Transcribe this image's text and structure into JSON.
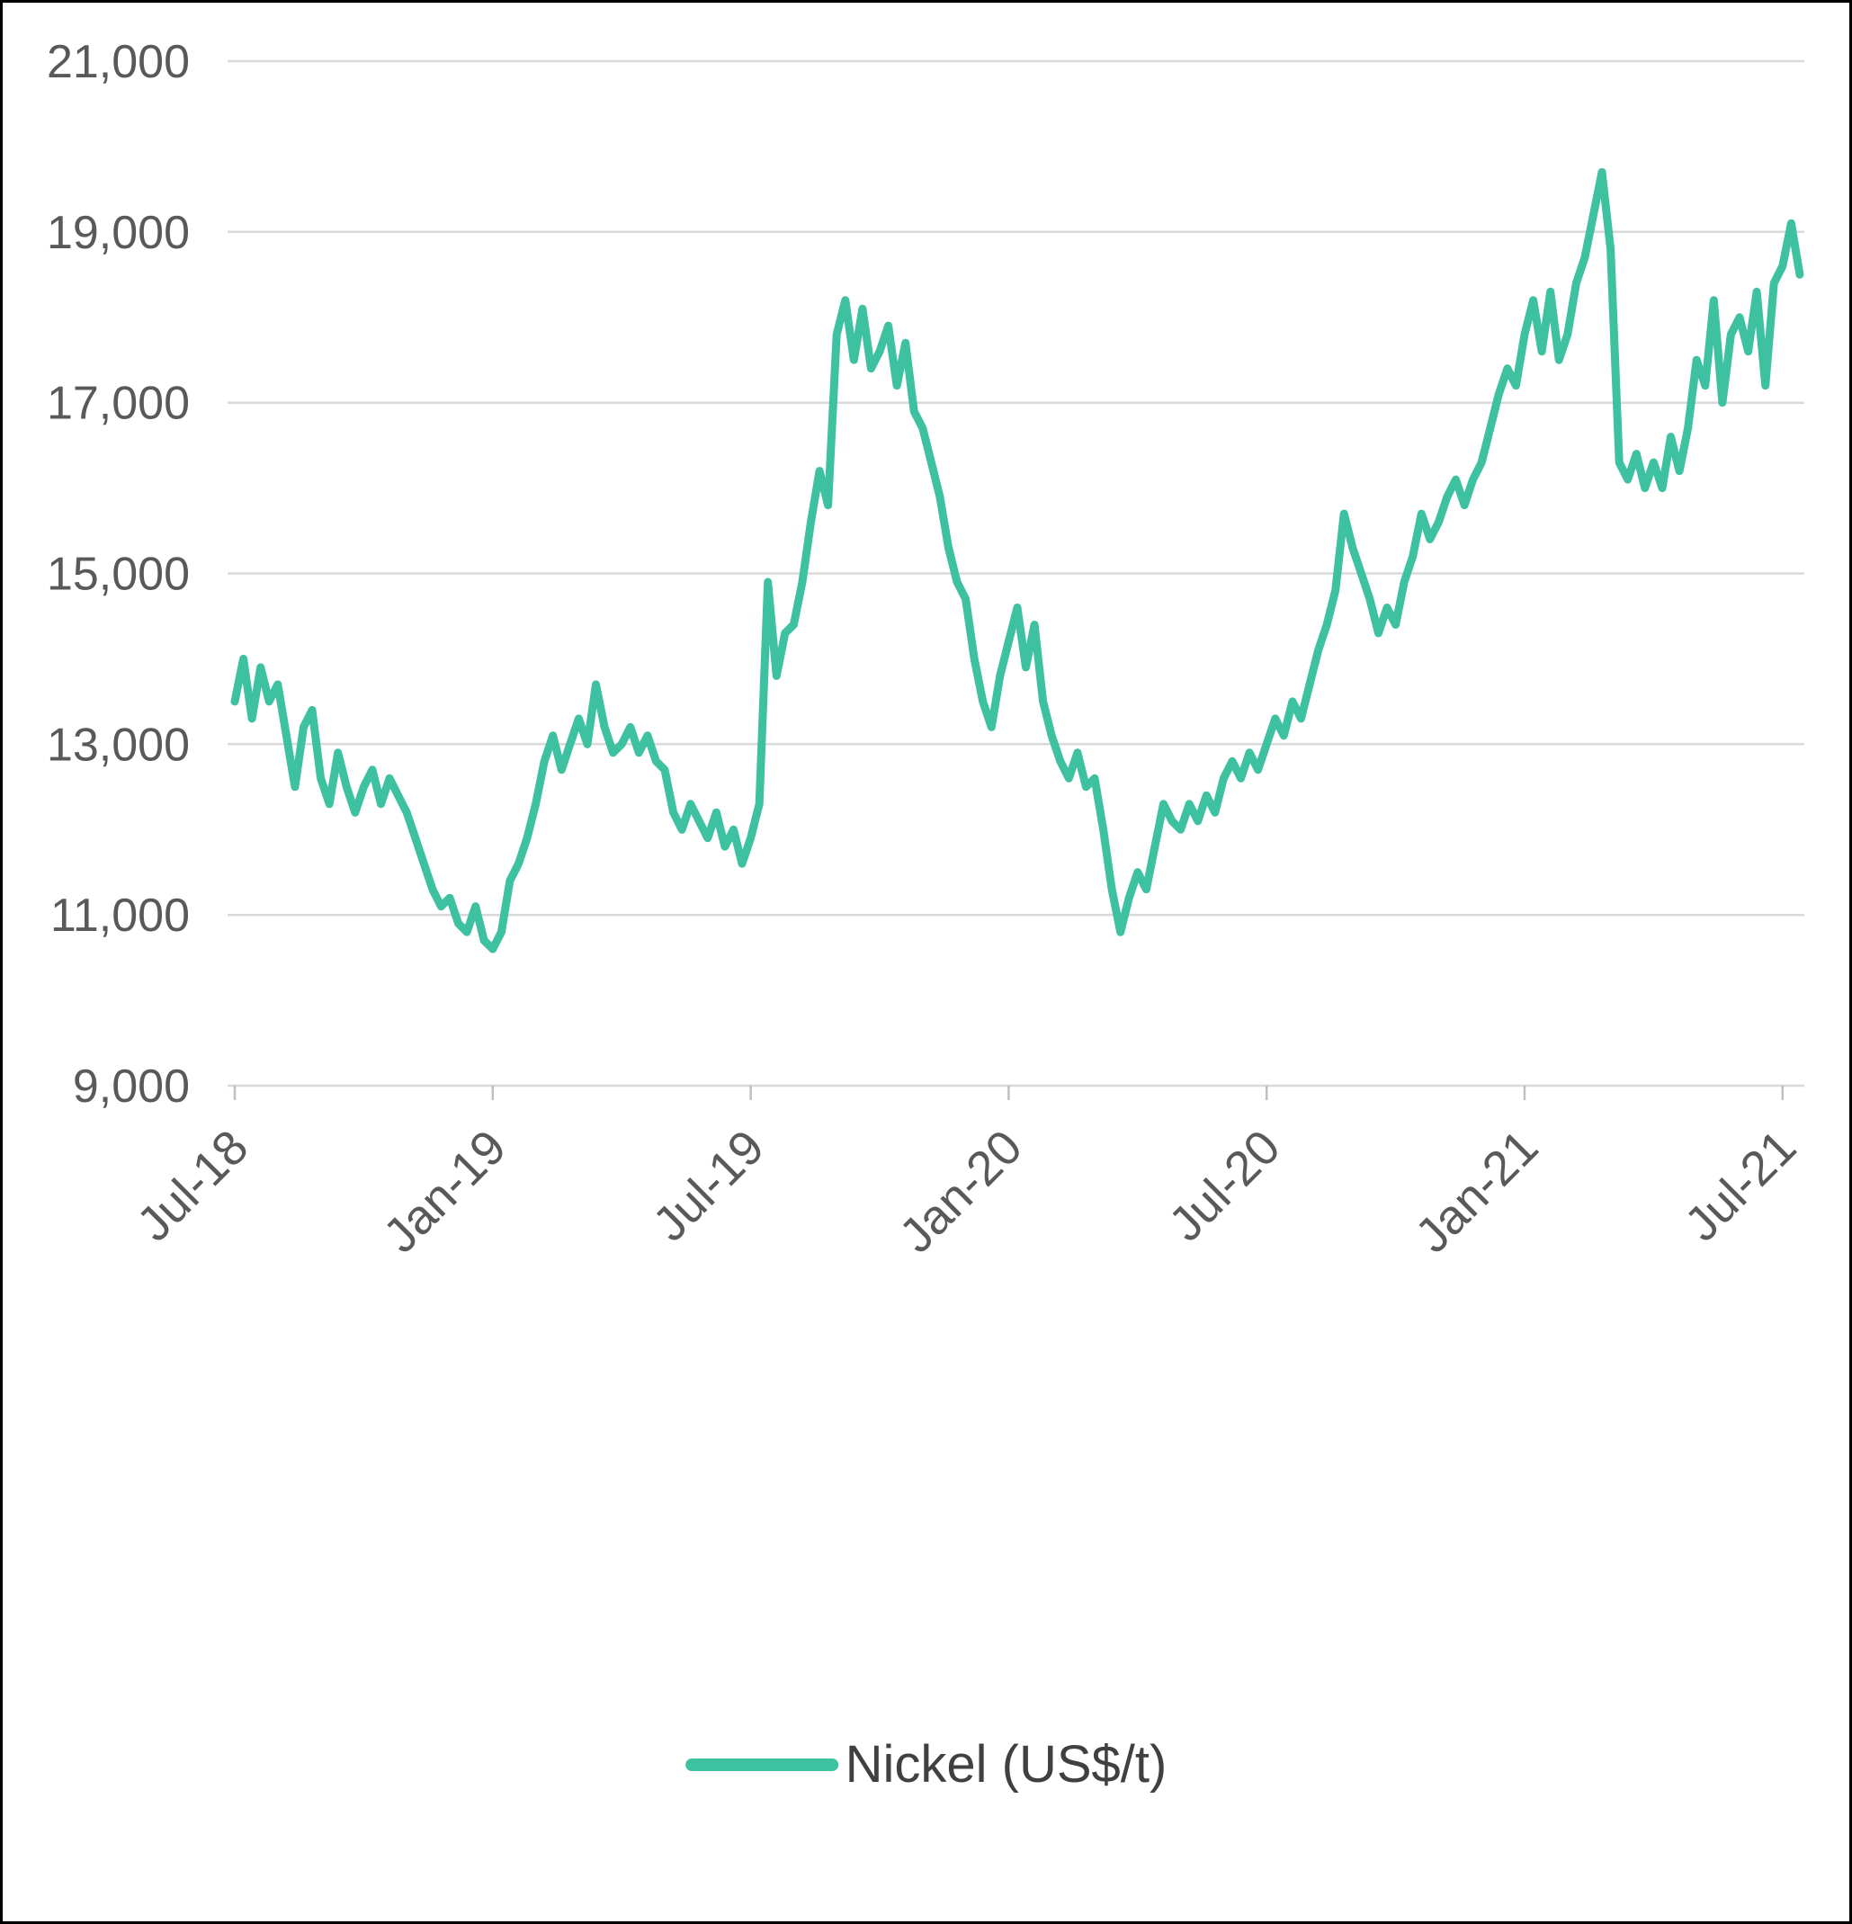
{
  "page": {
    "background": "#FFFFFF",
    "border_color": "#000000"
  },
  "chart_data": {
    "type": "line",
    "title": "",
    "grid": "horizontal",
    "legend": {
      "label": "Nickel (US$/t)",
      "position": "bottom-center"
    },
    "colors": {
      "line": "#3EC1A0",
      "gridline": "#D9D9D9",
      "tick": "#BFBFBF",
      "label": "#595959",
      "legend_text": "#404040"
    },
    "x_axis": {
      "tick_labels": [
        "Jul-18",
        "Jan-19",
        "Jul-19",
        "Jan-20",
        "Jul-20",
        "Jan-21",
        "Jul-21"
      ],
      "tick_months": [
        0,
        6,
        12,
        18,
        24,
        30,
        36
      ],
      "rotation_deg": -45,
      "lim_months": [
        0,
        36.5
      ]
    },
    "y_axis": {
      "ticks": [
        9000,
        11000,
        13000,
        15000,
        17000,
        19000,
        21000
      ],
      "tick_labels": [
        "9,000",
        "11,000",
        "13,000",
        "15,000",
        "17,000",
        "19,000",
        "21,000"
      ],
      "lim": [
        9000,
        21000
      ]
    },
    "series": [
      {
        "name": "Nickel (US$/t)",
        "unit": "US$/t",
        "month_start": 0,
        "month_step": 0.2,
        "values": [
          13500,
          14000,
          13300,
          13900,
          13500,
          13700,
          13100,
          12500,
          13200,
          13400,
          12600,
          12300,
          12900,
          12500,
          12200,
          12500,
          12700,
          12300,
          12600,
          12400,
          12200,
          11900,
          11600,
          11300,
          11100,
          11200,
          10900,
          10800,
          11100,
          10700,
          10600,
          10800,
          11400,
          11600,
          11900,
          12300,
          12800,
          13100,
          12700,
          13000,
          13300,
          13000,
          13700,
          13200,
          12900,
          13000,
          13200,
          12900,
          13100,
          12800,
          12700,
          12200,
          12000,
          12300,
          12100,
          11900,
          12200,
          11800,
          12000,
          11600,
          11900,
          12300,
          14900,
          13800,
          14300,
          14400,
          14900,
          15600,
          16200,
          15800,
          17800,
          18200,
          17500,
          18100,
          17400,
          17600,
          17900,
          17200,
          17700,
          16900,
          16700,
          16300,
          15900,
          15300,
          14900,
          14700,
          14000,
          13500,
          13200,
          13800,
          14200,
          14600,
          13900,
          14400,
          13500,
          13100,
          12800,
          12600,
          12900,
          12500,
          12600,
          12000,
          11300,
          10800,
          11200,
          11500,
          11300,
          11800,
          12300,
          12100,
          12000,
          12300,
          12100,
          12400,
          12200,
          12600,
          12800,
          12600,
          12900,
          12700,
          13000,
          13300,
          13100,
          13500,
          13300,
          13700,
          14100,
          14400,
          14800,
          15700,
          15300,
          15000,
          14700,
          14300,
          14600,
          14400,
          14900,
          15200,
          15700,
          15400,
          15600,
          15900,
          16100,
          15800,
          16100,
          16300,
          16700,
          17100,
          17400,
          17200,
          17800,
          18200,
          17600,
          18300,
          17500,
          17800,
          18400,
          18700,
          19200,
          19700,
          18800,
          16300,
          16100,
          16400,
          16000,
          16300,
          16000,
          16600,
          16200,
          16700,
          17500,
          17200,
          18200,
          17000,
          17800,
          18000,
          17600,
          18300,
          17200,
          18400,
          18600,
          19100,
          18500
        ]
      }
    ]
  }
}
